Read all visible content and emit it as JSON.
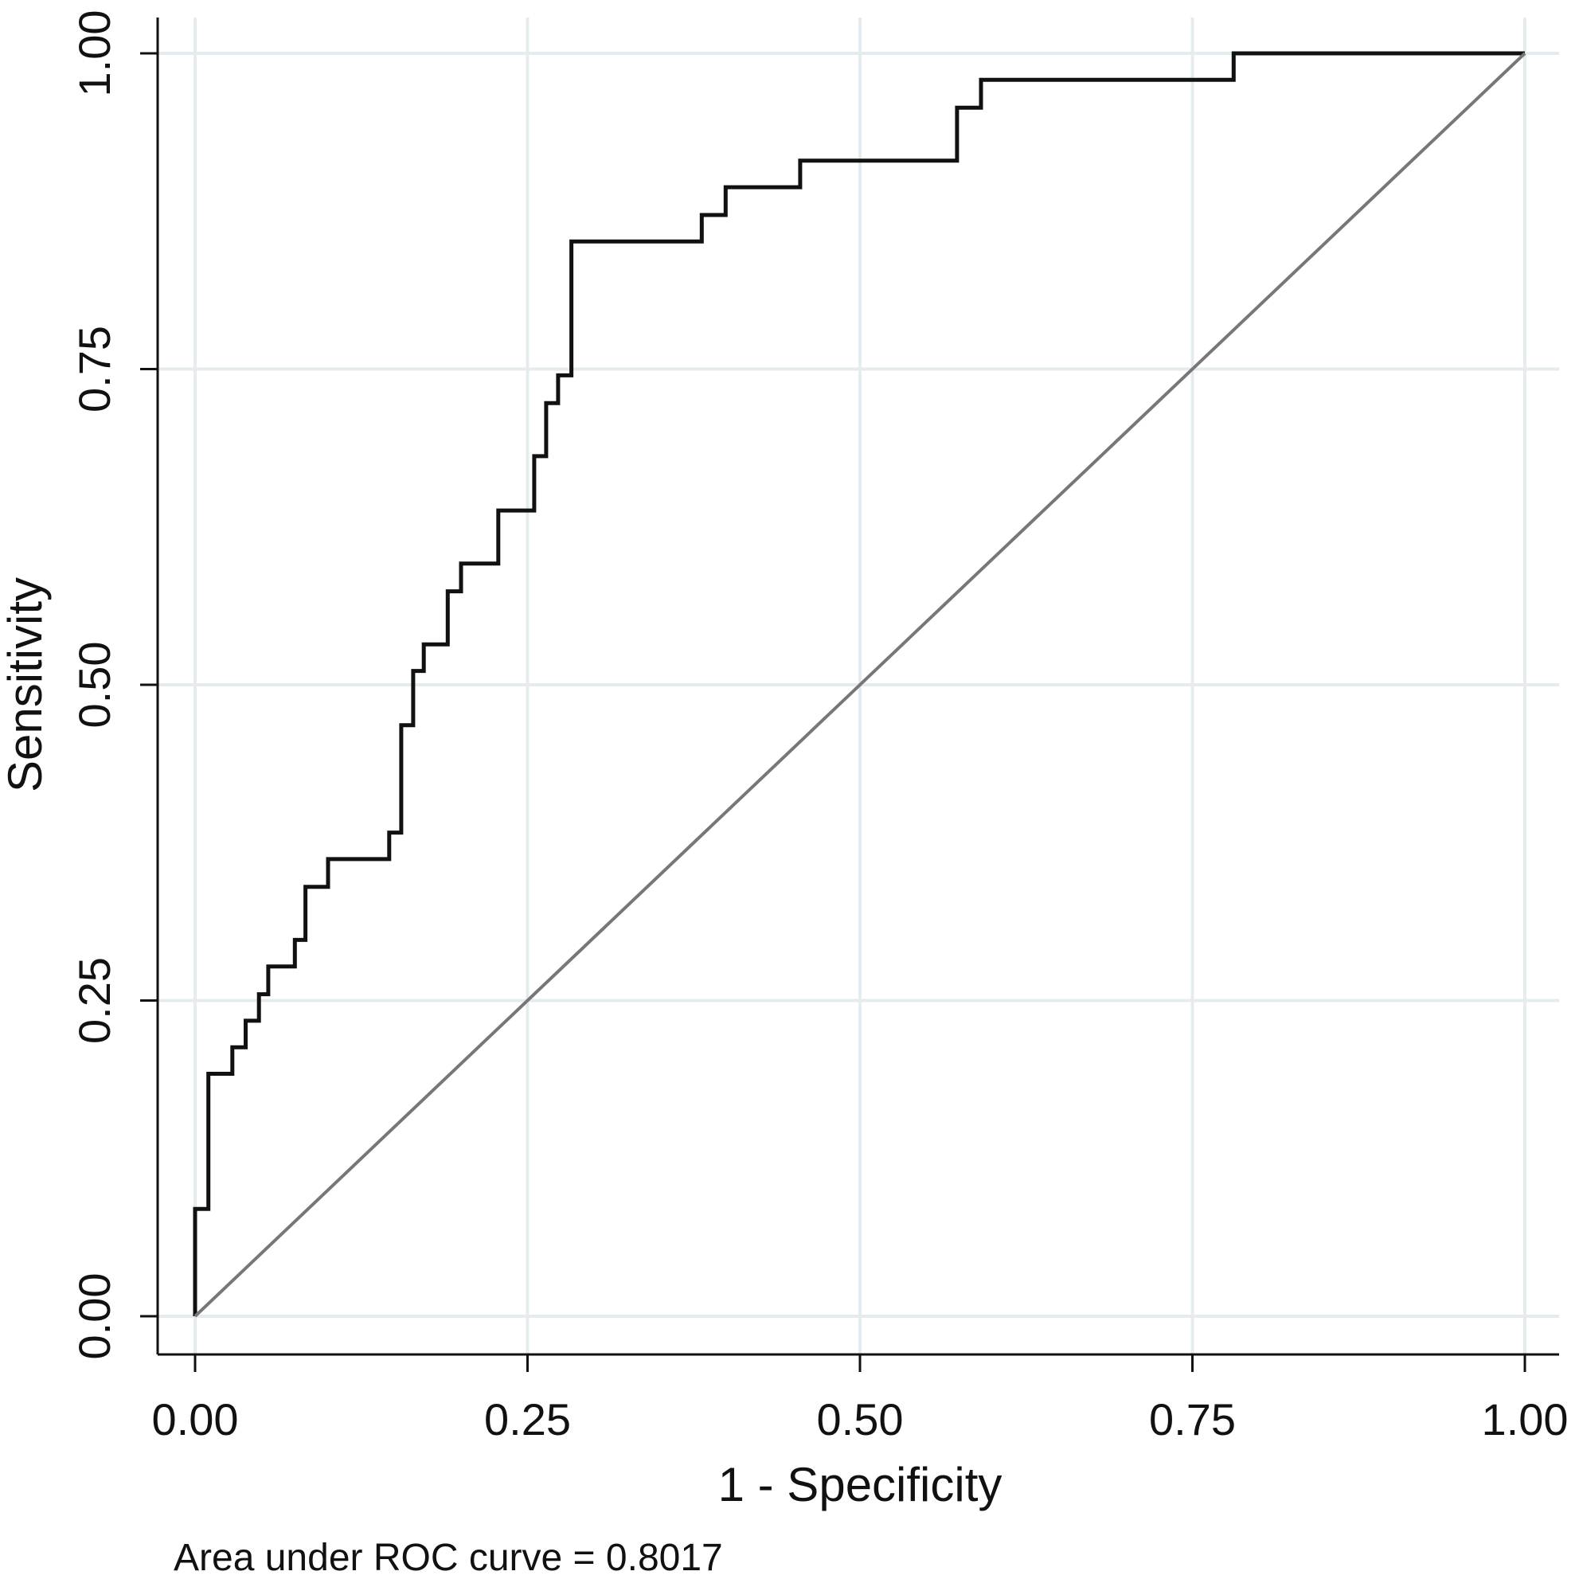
{
  "chart_data": {
    "type": "line",
    "title": "",
    "xlabel": "1 - Specificity",
    "ylabel": "Sensitivity",
    "xlim": [
      0,
      1
    ],
    "ylim": [
      0,
      1
    ],
    "grid": true,
    "x_ticks": [
      "0.00",
      "0.25",
      "0.50",
      "0.75",
      "1.00"
    ],
    "y_ticks": [
      "0.00",
      "0.25",
      "0.50",
      "0.75",
      "1.00"
    ],
    "note": "Area under ROC curve = 0.8017",
    "colors": {
      "roc": "#111111",
      "reference": "#777777",
      "grid": "#e4ecef",
      "axis": "#111111"
    },
    "series": [
      {
        "name": "ROC curve",
        "style": "step",
        "x": [
          0.0,
          0.0,
          0.01,
          0.01,
          0.028,
          0.028,
          0.038,
          0.038,
          0.048,
          0.048,
          0.055,
          0.055,
          0.075,
          0.075,
          0.083,
          0.083,
          0.1,
          0.1,
          0.146,
          0.146,
          0.155,
          0.155,
          0.164,
          0.164,
          0.172,
          0.172,
          0.19,
          0.19,
          0.2,
          0.2,
          0.228,
          0.228,
          0.255,
          0.255,
          0.264,
          0.264,
          0.273,
          0.273,
          0.283,
          0.283,
          0.381,
          0.381,
          0.399,
          0.399,
          0.455,
          0.455,
          0.573,
          0.573,
          0.591,
          0.591,
          0.781,
          0.781,
          1.0
        ],
        "y": [
          0.0,
          0.085,
          0.085,
          0.192,
          0.192,
          0.213,
          0.213,
          0.234,
          0.234,
          0.255,
          0.255,
          0.277,
          0.277,
          0.298,
          0.298,
          0.34,
          0.34,
          0.362,
          0.362,
          0.383,
          0.383,
          0.468,
          0.468,
          0.511,
          0.511,
          0.532,
          0.532,
          0.574,
          0.574,
          0.596,
          0.596,
          0.638,
          0.638,
          0.681,
          0.681,
          0.723,
          0.723,
          0.745,
          0.745,
          0.851,
          0.851,
          0.872,
          0.872,
          0.894,
          0.894,
          0.915,
          0.915,
          0.957,
          0.957,
          0.979,
          0.979,
          1.0,
          1.0
        ]
      },
      {
        "name": "Reference line",
        "style": "line",
        "x": [
          0,
          1
        ],
        "y": [
          0,
          1
        ]
      }
    ]
  }
}
